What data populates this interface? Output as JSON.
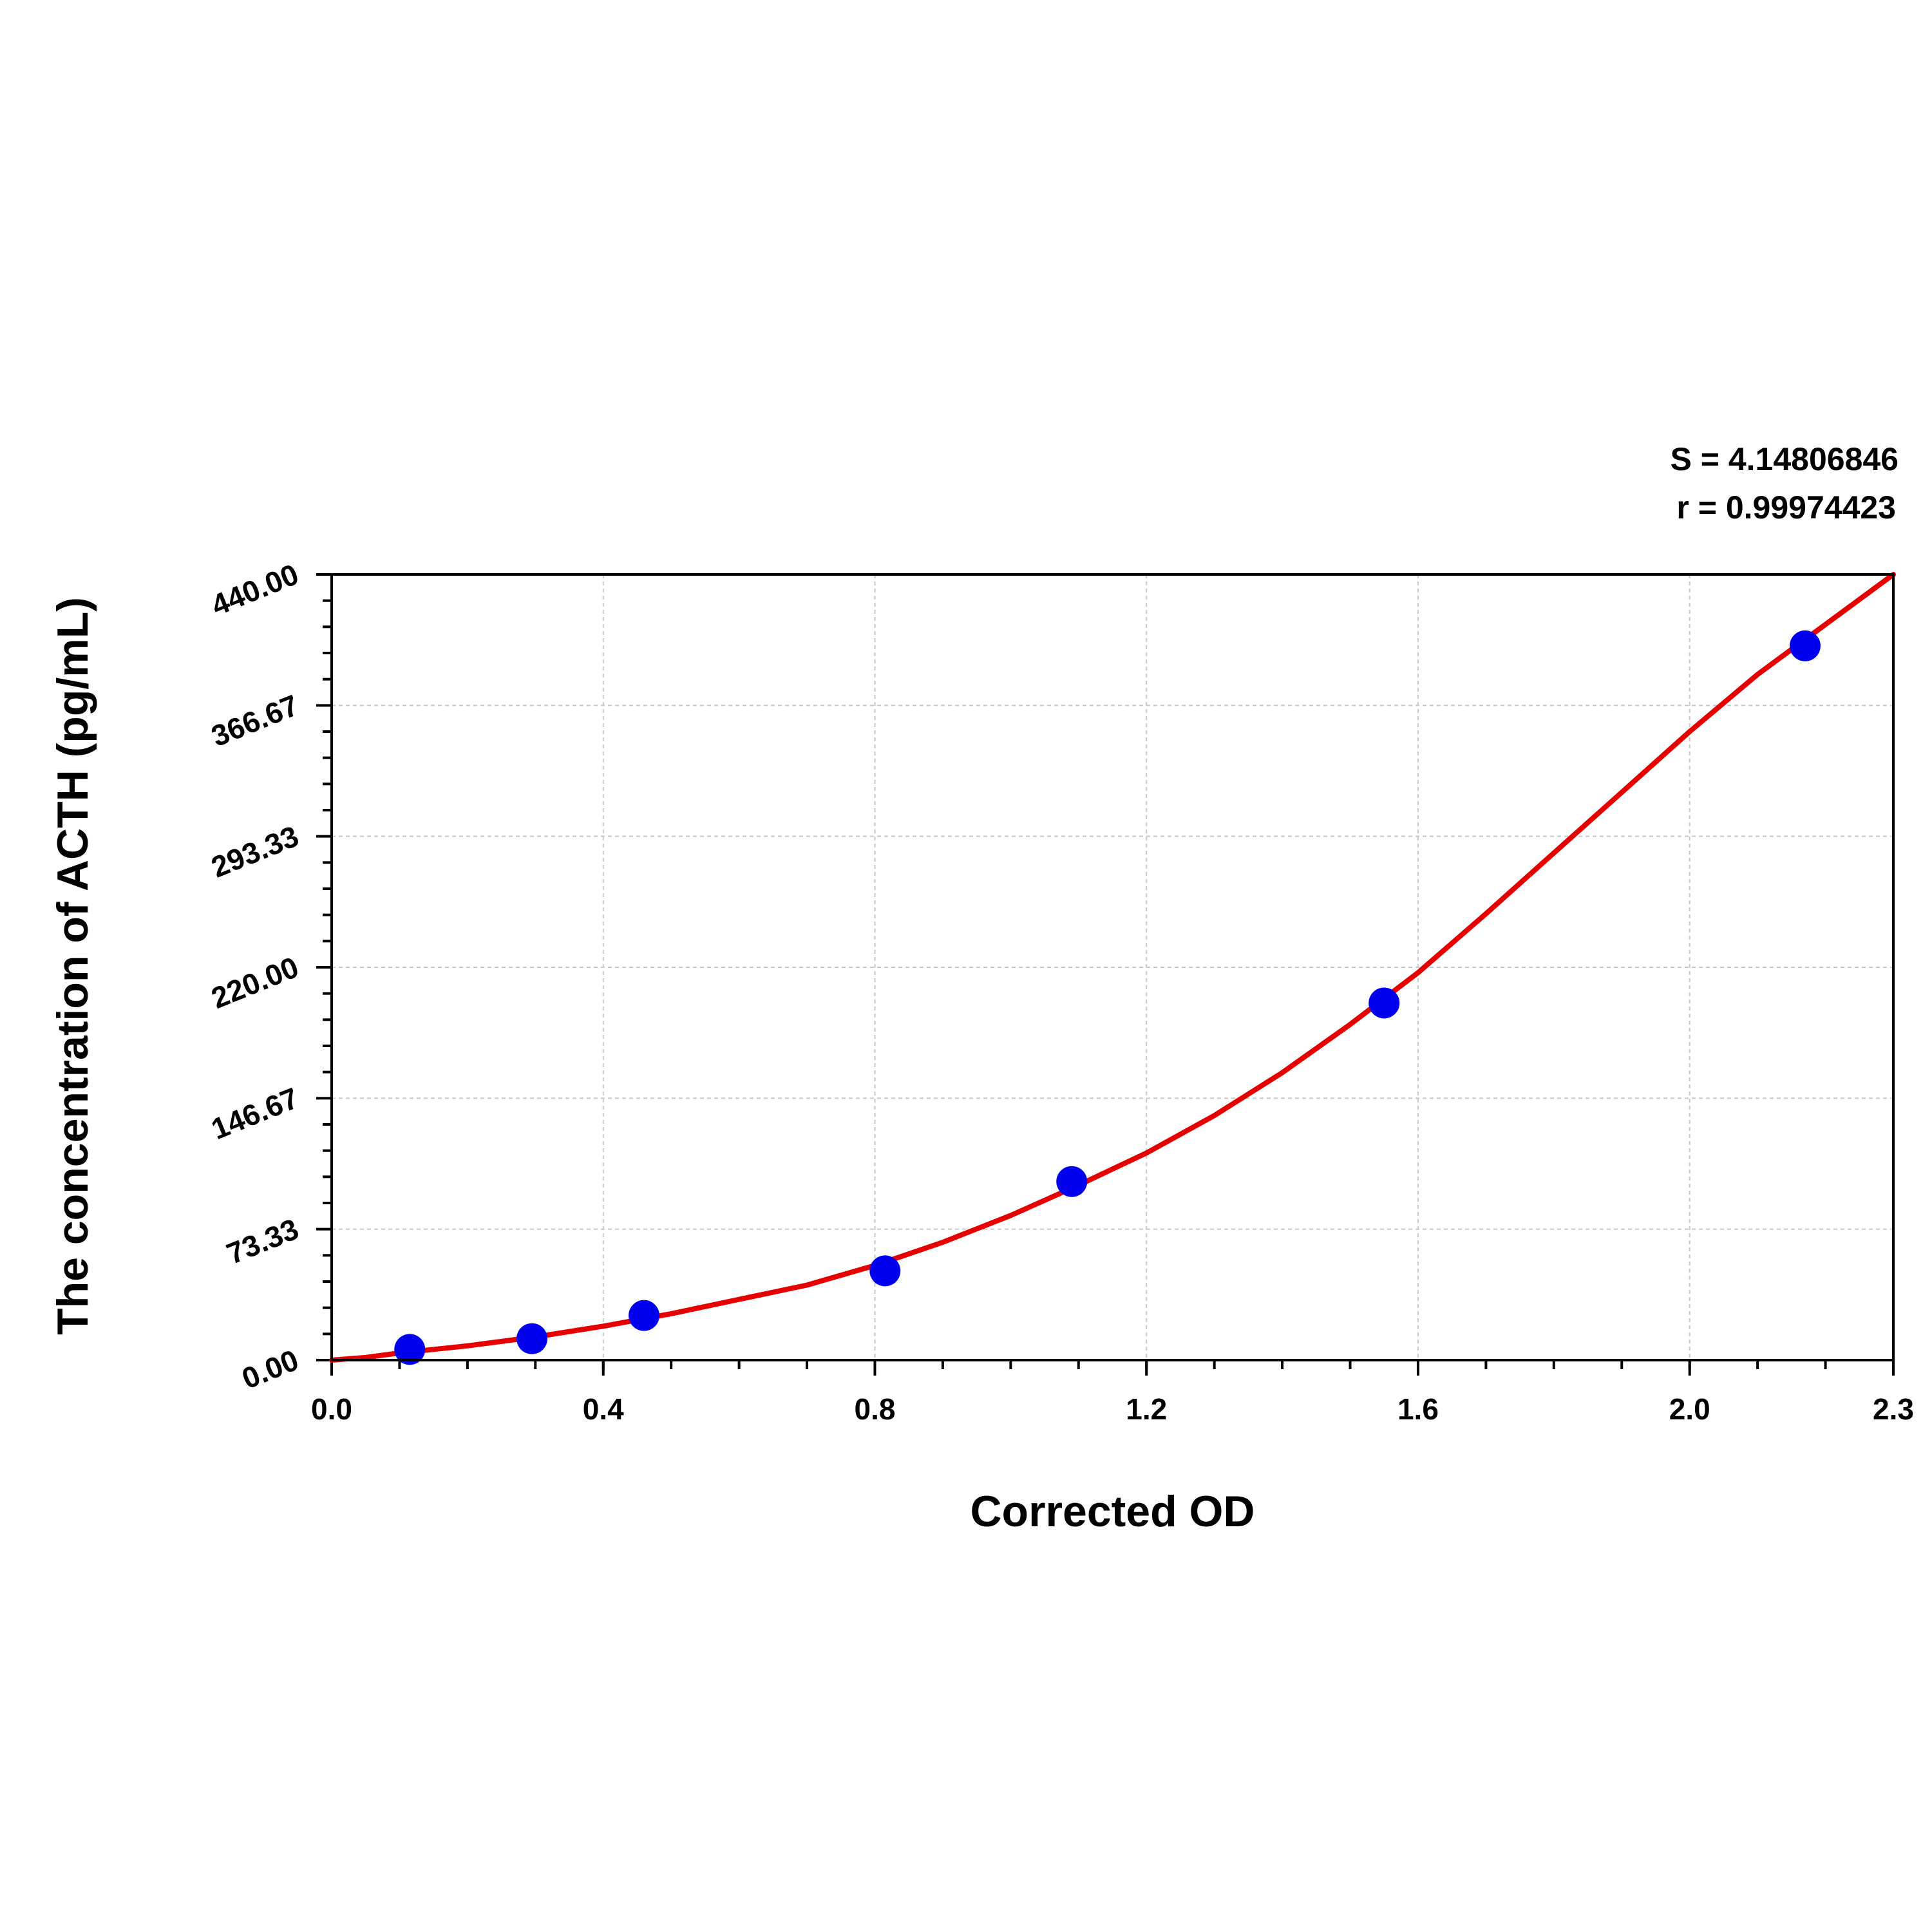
{
  "chart_data": {
    "type": "scatter",
    "xlabel": "Corrected OD",
    "ylabel": "The concentration of ACTH (pg/mL)",
    "xlim": [
      0.0,
      2.3
    ],
    "ylim": [
      0.0,
      440.0
    ],
    "x_ticks": [
      "0.0",
      "0.4",
      "0.8",
      "1.2",
      "1.6",
      "2.0",
      "2.3"
    ],
    "x_tick_values": [
      0.0,
      0.4,
      0.8,
      1.2,
      1.6,
      2.0,
      2.3
    ],
    "y_ticks": [
      "0.00",
      "73.33",
      "146.67",
      "220.00",
      "293.33",
      "366.67",
      "440.00"
    ],
    "y_tick_values": [
      0.0,
      73.33,
      146.67,
      220.0,
      293.33,
      366.67,
      440.0
    ],
    "grid": true,
    "annotations": [
      "S = 4.14806846",
      "r = 0.99974423"
    ],
    "series": [
      {
        "type": "scatter",
        "color": "#0000ee",
        "x": [
          0.115,
          0.295,
          0.46,
          0.815,
          1.09,
          1.55,
          2.17
        ],
        "y": [
          6.0,
          12.0,
          25.0,
          50.0,
          100.0,
          200.0,
          400.0
        ]
      },
      {
        "type": "line",
        "color": "#e60000",
        "x": [
          0.0,
          0.05,
          0.1,
          0.2,
          0.3,
          0.4,
          0.5,
          0.6,
          0.7,
          0.8,
          0.9,
          1.0,
          1.1,
          1.2,
          1.3,
          1.4,
          1.5,
          1.6,
          1.7,
          1.8,
          1.9,
          2.0,
          2.1,
          2.2,
          2.3
        ],
        "y": [
          0.0,
          1.5,
          4.0,
          8.0,
          13.0,
          19.0,
          26.0,
          34.0,
          42.0,
          53.0,
          66.0,
          81.0,
          98.0,
          116.0,
          137.0,
          161.0,
          188.0,
          217.0,
          250.0,
          284.0,
          318.0,
          352.0,
          384.0,
          412.0,
          440.0
        ]
      }
    ]
  }
}
